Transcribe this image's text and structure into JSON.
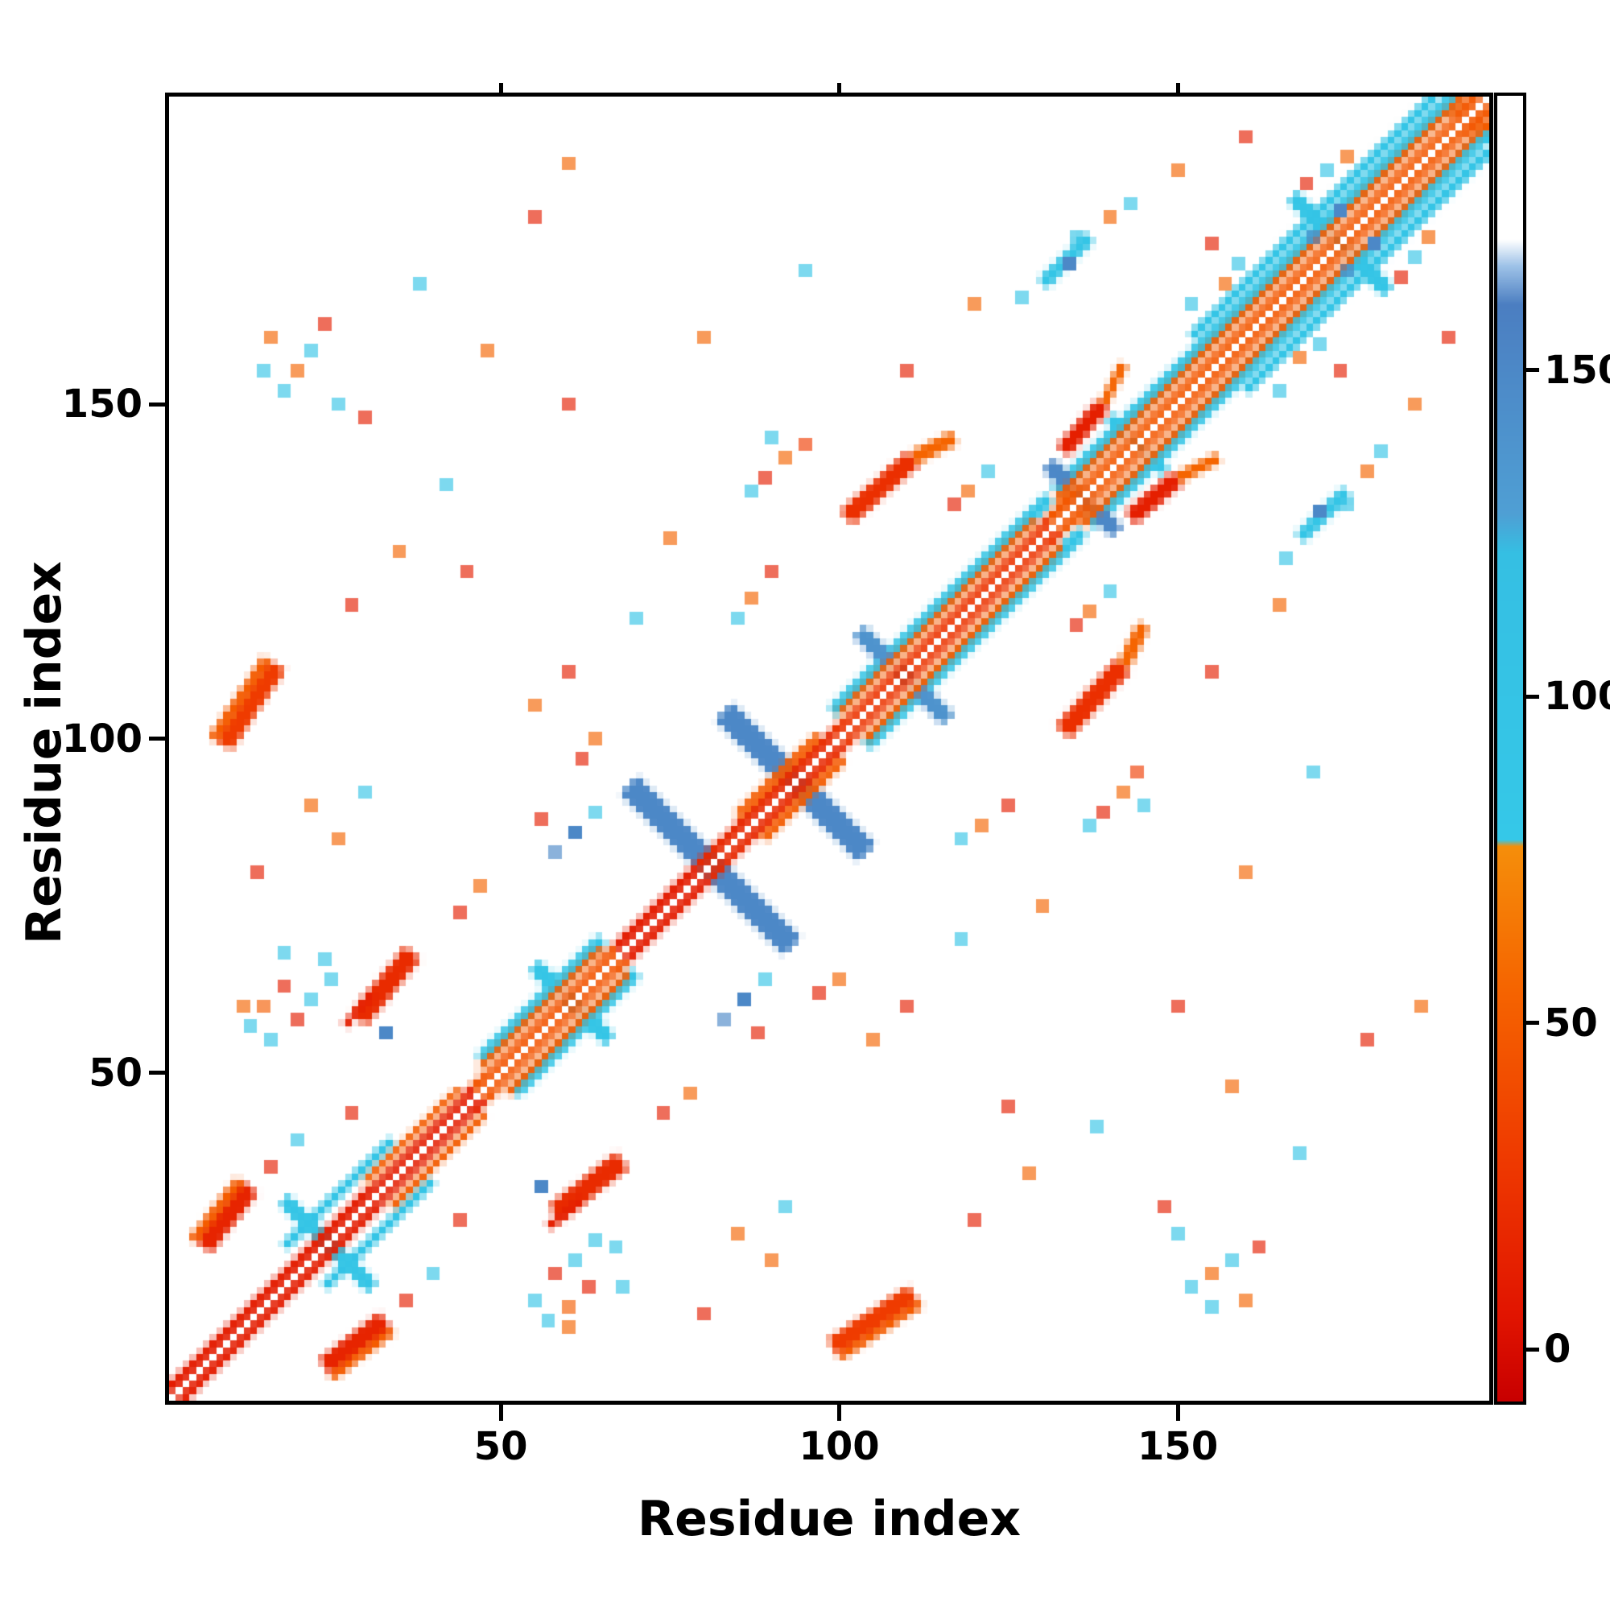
{
  "chart_data": {
    "type": "heatmap",
    "title": "",
    "xlabel": "Residue index",
    "ylabel": "Residue index",
    "x_range": [
      1,
      196
    ],
    "y_range": [
      1,
      196
    ],
    "n": 195,
    "x_ticks": [
      50,
      100,
      150
    ],
    "y_ticks": [
      50,
      100,
      150
    ],
    "grid": false,
    "legend_position": "none",
    "symmetric": true,
    "background": "#ffffff",
    "frame_color": "#000000",
    "colorbar": {
      "min": -8,
      "max": 192,
      "ticks": [
        0,
        50,
        100,
        150
      ],
      "stops": [
        {
          "v": -8,
          "c": "#c80000"
        },
        {
          "v": 5,
          "c": "#e11400"
        },
        {
          "v": 30,
          "c": "#ef3b00"
        },
        {
          "v": 55,
          "c": "#f56400"
        },
        {
          "v": 77,
          "c": "#f58e0a"
        },
        {
          "v": 78,
          "c": "#35c8e8"
        },
        {
          "v": 122,
          "c": "#35bfe3"
        },
        {
          "v": 128,
          "c": "#4f9fd4"
        },
        {
          "v": 160,
          "c": "#4b7ec1"
        },
        {
          "v": 166,
          "c": "#9fc3e8"
        },
        {
          "v": 170,
          "c": "#ffffff"
        },
        {
          "v": 192,
          "c": "#ffffff"
        }
      ]
    },
    "strokes": [
      {
        "x1": 52,
        "y1": 47,
        "x2": 70,
        "y2": 65,
        "w": 2,
        "v": 95
      },
      {
        "x1": 104,
        "y1": 99,
        "x2": 136,
        "y2": 131,
        "w": 2,
        "v": 95
      },
      {
        "x1": 137,
        "y1": 132,
        "x2": 196,
        "y2": 191,
        "w": 2.2,
        "v": 95
      },
      {
        "x1": 160,
        "y1": 152,
        "x2": 196,
        "y2": 188,
        "w": 1.6,
        "v": 95
      },
      {
        "x1": 24,
        "y1": 18,
        "x2": 40,
        "y2": 34,
        "w": 1.4,
        "v": 95
      },
      {
        "x1": 69,
        "y1": 93,
        "x2": 93,
        "y2": 69,
        "w": 3.4,
        "v": 150
      },
      {
        "x1": 83,
        "y1": 104,
        "x2": 104,
        "y2": 83,
        "w": 3.4,
        "v": 150
      },
      {
        "x1": 55,
        "y1": 66,
        "x2": 66,
        "y2": 55,
        "w": 2,
        "v": 95
      },
      {
        "x1": 103,
        "y1": 116,
        "x2": 116,
        "y2": 103,
        "w": 2.2,
        "v": 140
      },
      {
        "x1": 131,
        "y1": 141,
        "x2": 141,
        "y2": 131,
        "w": 2.2,
        "v": 150
      },
      {
        "x1": 167,
        "y1": 181,
        "x2": 181,
        "y2": 167,
        "w": 2,
        "v": 95
      },
      {
        "x1": 140,
        "y1": 148,
        "x2": 148,
        "y2": 140,
        "w": 1.6,
        "v": 95
      },
      {
        "x1": 18,
        "y1": 31,
        "x2": 31,
        "y2": 18,
        "w": 1.8,
        "v": 95
      },
      {
        "x1": 24,
        "y1": 6,
        "x2": 33,
        "y2": 13,
        "w": 3,
        "v": 15
      },
      {
        "x1": 25,
        "y1": 4.5,
        "x2": 34,
        "y2": 11.5,
        "w": 1.4,
        "v": 50
      },
      {
        "x1": 58,
        "y1": 29,
        "x2": 68,
        "y2": 37,
        "w": 3,
        "v": 20
      },
      {
        "x1": 99,
        "y1": 9,
        "x2": 111,
        "y2": 17,
        "w": 3,
        "v": 30
      },
      {
        "x1": 100,
        "y1": 7.5,
        "x2": 112,
        "y2": 15.5,
        "w": 1.4,
        "v": 50
      },
      {
        "x1": 101,
        "y1": 133,
        "x2": 111,
        "y2": 142,
        "w": 3,
        "v": 22
      },
      {
        "x1": 111,
        "y1": 142,
        "x2": 117,
        "y2": 145,
        "w": 2,
        "v": 55
      },
      {
        "x1": 143,
        "y1": 133,
        "x2": 150,
        "y2": 139,
        "w": 2.5,
        "v": 12
      },
      {
        "x1": 150,
        "y1": 139,
        "x2": 156,
        "y2": 142,
        "w": 1.6,
        "v": 55
      },
      {
        "x1": 130,
        "y1": 168,
        "x2": 137,
        "y2": 175,
        "w": 2,
        "v": 95
      },
      {
        "x1": 27,
        "y1": 57,
        "x2": 31,
        "y2": 62,
        "w": 1.2,
        "v": 12
      },
      {
        "x1": 2.6,
        "y1": 1,
        "x2": 47.6,
        "y2": 46,
        "w": 1.5,
        "v": 10
      },
      {
        "x1": 47.6,
        "y1": 46,
        "x2": 68.6,
        "y2": 67,
        "w": 1.5,
        "v": 45
      },
      {
        "x1": 68.6,
        "y1": 67,
        "x2": 80.6,
        "y2": 79,
        "w": 1.5,
        "v": 10
      },
      {
        "x1": 80.6,
        "y1": 79,
        "x2": 100.6,
        "y2": 99,
        "w": 1.5,
        "v": 18
      },
      {
        "x1": 100.6,
        "y1": 99,
        "x2": 132.6,
        "y2": 131,
        "w": 1.5,
        "v": 25
      },
      {
        "x1": 132.6,
        "y1": 131,
        "x2": 196,
        "y2": 194.4,
        "w": 1.5,
        "v": 47
      },
      {
        "x1": 33.6,
        "y1": 30,
        "x2": 47.6,
        "y2": 44,
        "w": 1.4,
        "v": 50
      },
      {
        "x1": 50.6,
        "y1": 47,
        "x2": 68.6,
        "y2": 65,
        "w": 1.4,
        "v": 50
      },
      {
        "x1": 88.6,
        "y1": 85,
        "x2": 100.6,
        "y2": 97,
        "w": 1.4,
        "v": 50
      },
      {
        "x1": 103.6,
        "y1": 100,
        "x2": 132.6,
        "y2": 129,
        "w": 1.4,
        "v": 50
      },
      {
        "x1": 135.6,
        "y1": 132,
        "x2": 196,
        "y2": 192.4,
        "w": 1.4,
        "v": 50
      },
      {
        "x1": 32.7,
        "y1": 30,
        "x2": 46.7,
        "y2": 44,
        "w": 0.7,
        "c": "#ffffff"
      },
      {
        "x1": 49.7,
        "y1": 47,
        "x2": 67.7,
        "y2": 65,
        "w": 0.7,
        "c": "#ffffff"
      },
      {
        "x1": 102.7,
        "y1": 100,
        "x2": 131.7,
        "y2": 129,
        "w": 0.7,
        "c": "#ffffff"
      },
      {
        "x1": 137.7,
        "y1": 135,
        "x2": 193,
        "y2": 190.3,
        "w": 0.7,
        "c": "#ffffff"
      }
    ],
    "dots": [
      [
        16,
        55,
        95
      ],
      [
        20,
        58,
        10
      ],
      [
        22,
        61,
        95
      ],
      [
        18,
        63,
        12
      ],
      [
        25,
        64,
        95
      ],
      [
        15,
        60,
        50
      ],
      [
        24,
        67,
        95
      ],
      [
        13,
        57,
        95
      ],
      [
        152,
        18,
        95
      ],
      [
        155,
        20,
        55
      ],
      [
        158,
        22,
        95
      ],
      [
        160,
        16,
        55
      ],
      [
        162,
        24,
        12
      ],
      [
        155,
        15,
        95
      ],
      [
        150,
        26,
        95
      ],
      [
        134,
        171,
        150,
        2
      ],
      [
        127,
        166,
        95
      ],
      [
        140,
        178,
        55
      ],
      [
        143,
        180,
        95
      ],
      [
        89,
        139,
        12
      ],
      [
        92,
        142,
        55
      ],
      [
        95,
        144,
        30
      ],
      [
        87,
        137,
        95
      ],
      [
        168,
        157,
        55
      ],
      [
        171,
        159,
        95
      ],
      [
        174,
        155,
        12
      ],
      [
        165,
        152,
        95
      ],
      [
        185,
        172,
        95
      ],
      [
        187,
        175,
        55
      ],
      [
        183,
        169,
        12
      ],
      [
        121,
        87,
        55
      ],
      [
        125,
        90,
        12
      ],
      [
        118,
        85,
        95
      ],
      [
        137,
        119,
        55
      ],
      [
        140,
        122,
        95
      ],
      [
        135,
        117,
        12
      ],
      [
        61,
        86,
        150,
        2
      ],
      [
        64,
        89,
        95
      ],
      [
        58,
        83,
        150
      ],
      [
        56,
        33,
        150,
        2
      ],
      [
        179,
        174,
        150,
        2
      ],
      [
        175,
        170,
        150
      ],
      [
        40,
        20,
        95
      ],
      [
        36,
        16,
        12
      ],
      [
        74,
        44,
        12
      ],
      [
        78,
        47,
        55
      ],
      [
        88,
        56,
        12
      ],
      [
        92,
        30,
        95
      ],
      [
        85,
        26,
        55
      ],
      [
        110,
        60,
        12
      ],
      [
        105,
        55,
        55
      ],
      [
        118,
        70,
        95
      ],
      [
        125,
        45,
        12
      ],
      [
        130,
        75,
        55
      ],
      [
        145,
        90,
        95
      ],
      [
        150,
        60,
        12
      ],
      [
        160,
        80,
        55
      ],
      [
        170,
        95,
        95
      ],
      [
        155,
        110,
        12
      ],
      [
        165,
        120,
        55
      ],
      [
        175,
        135,
        95
      ],
      [
        185,
        150,
        55
      ],
      [
        190,
        160,
        12
      ],
      [
        60,
        12,
        55
      ],
      [
        68,
        18,
        95
      ],
      [
        80,
        14,
        12
      ],
      [
        90,
        22,
        55
      ],
      [
        120,
        28,
        12
      ],
      [
        128,
        35,
        55
      ],
      [
        138,
        42,
        95
      ],
      [
        148,
        30,
        12
      ],
      [
        158,
        48,
        55
      ],
      [
        168,
        38,
        95
      ],
      [
        178,
        55,
        12
      ],
      [
        186,
        60,
        55
      ],
      [
        44,
        28,
        12
      ],
      [
        97,
        62,
        12
      ],
      [
        100,
        64,
        55
      ]
    ]
  }
}
